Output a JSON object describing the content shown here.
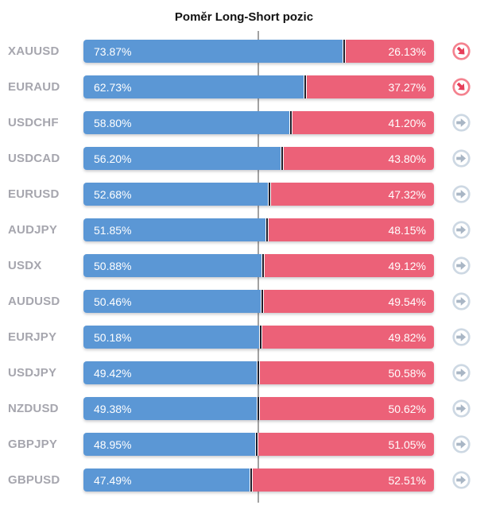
{
  "title": "Poměr Long-Short pozic",
  "colors": {
    "long_bar": "#5b97d5",
    "short_bar": "#ec6178",
    "segment_divider": "#1d1d2b",
    "midline": "#a2a2a2",
    "pair_label": "#a6a6ae",
    "alert_icon": "#e63e59",
    "neutral_icon": "#a9b6c5",
    "percent_text": "#ffffff"
  },
  "chart_data": {
    "type": "bar",
    "orientation": "horizontal-stacked",
    "title": "Poměr Long-Short pozic",
    "categories": [
      "XAUUSD",
      "EURAUD",
      "USDCHF",
      "USDCAD",
      "EURUSD",
      "AUDJPY",
      "USDX",
      "AUDUSD",
      "EURJPY",
      "USDJPY",
      "NZDUSD",
      "GBPJPY",
      "GBPUSD"
    ],
    "series": [
      {
        "name": "Long",
        "color": "#5b97d5",
        "values": [
          73.87,
          62.73,
          58.8,
          56.2,
          52.68,
          51.85,
          50.88,
          50.46,
          50.18,
          49.42,
          49.38,
          48.95,
          47.49
        ]
      },
      {
        "name": "Short",
        "color": "#ec6178",
        "values": [
          26.13,
          37.27,
          41.2,
          43.8,
          47.32,
          48.15,
          49.12,
          49.54,
          49.82,
          50.58,
          50.62,
          51.05,
          52.51
        ]
      }
    ],
    "xlim": [
      0,
      100
    ],
    "reference_line_at": 50,
    "grid": false,
    "legend": false,
    "data_labels": "percent shown inside both segments"
  },
  "rows": [
    {
      "pair": "XAUUSD",
      "long": 73.87,
      "short": 26.13,
      "long_label": "73.87%",
      "short_label": "26.13%",
      "icon": "arrow-down-right-icon",
      "alert": true
    },
    {
      "pair": "EURAUD",
      "long": 62.73,
      "short": 37.27,
      "long_label": "62.73%",
      "short_label": "37.27%",
      "icon": "arrow-down-right-icon",
      "alert": true
    },
    {
      "pair": "USDCHF",
      "long": 58.8,
      "short": 41.2,
      "long_label": "58.80%",
      "short_label": "41.20%",
      "icon": "arrow-right-icon",
      "alert": false
    },
    {
      "pair": "USDCAD",
      "long": 56.2,
      "short": 43.8,
      "long_label": "56.20%",
      "short_label": "43.80%",
      "icon": "arrow-right-icon",
      "alert": false
    },
    {
      "pair": "EURUSD",
      "long": 52.68,
      "short": 47.32,
      "long_label": "52.68%",
      "short_label": "47.32%",
      "icon": "arrow-right-icon",
      "alert": false
    },
    {
      "pair": "AUDJPY",
      "long": 51.85,
      "short": 48.15,
      "long_label": "51.85%",
      "short_label": "48.15%",
      "icon": "arrow-right-icon",
      "alert": false
    },
    {
      "pair": "USDX",
      "long": 50.88,
      "short": 49.12,
      "long_label": "50.88%",
      "short_label": "49.12%",
      "icon": "arrow-right-icon",
      "alert": false
    },
    {
      "pair": "AUDUSD",
      "long": 50.46,
      "short": 49.54,
      "long_label": "50.46%",
      "short_label": "49.54%",
      "icon": "arrow-right-icon",
      "alert": false
    },
    {
      "pair": "EURJPY",
      "long": 50.18,
      "short": 49.82,
      "long_label": "50.18%",
      "short_label": "49.82%",
      "icon": "arrow-right-icon",
      "alert": false
    },
    {
      "pair": "USDJPY",
      "long": 49.42,
      "short": 50.58,
      "long_label": "49.42%",
      "short_label": "50.58%",
      "icon": "arrow-right-icon",
      "alert": false
    },
    {
      "pair": "NZDUSD",
      "long": 49.38,
      "short": 50.62,
      "long_label": "49.38%",
      "short_label": "50.62%",
      "icon": "arrow-right-icon",
      "alert": false
    },
    {
      "pair": "GBPJPY",
      "long": 48.95,
      "short": 51.05,
      "long_label": "48.95%",
      "short_label": "51.05%",
      "icon": "arrow-right-icon",
      "alert": false
    },
    {
      "pair": "GBPUSD",
      "long": 47.49,
      "short": 52.51,
      "long_label": "47.49%",
      "short_label": "52.51%",
      "icon": "arrow-right-icon",
      "alert": false
    }
  ]
}
